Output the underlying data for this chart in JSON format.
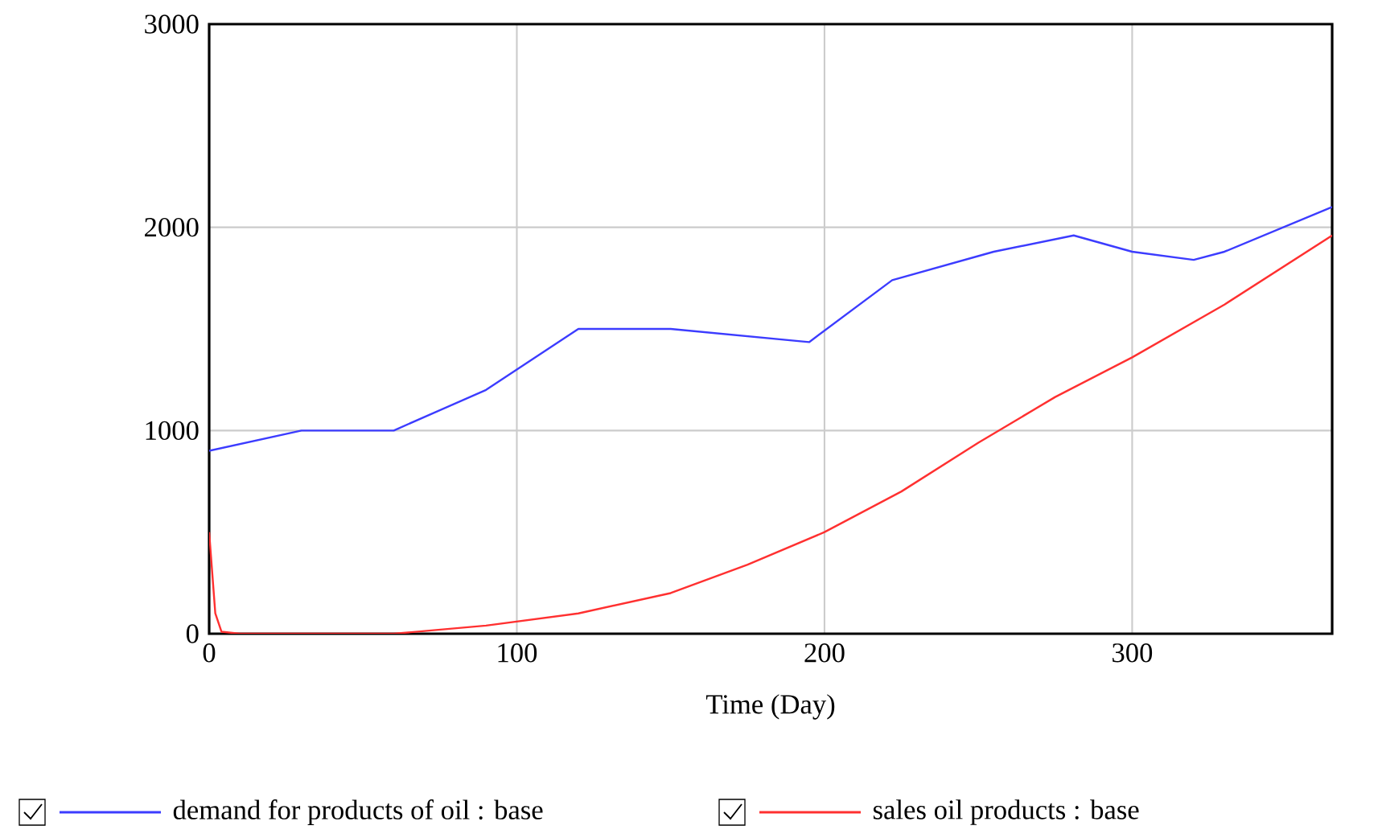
{
  "chart_data": {
    "type": "line",
    "xlabel": "Time (Day)",
    "xlim": [
      0,
      365
    ],
    "xticks": [
      0,
      100,
      200,
      300
    ],
    "ylim": [
      0,
      3000
    ],
    "yticks": [
      0,
      1000,
      2000,
      3000
    ],
    "grid": true,
    "legend": "bottom",
    "marker": "none",
    "line_style": "solid",
    "series": [
      {
        "name": "demand for products of oil : base",
        "color": "#3c3cff",
        "x": [
          0,
          30,
          60,
          90,
          120,
          150,
          195,
          222,
          255,
          281,
          300,
          320,
          330,
          365
        ],
        "values": [
          900,
          1000,
          1000,
          1200,
          1500,
          1500,
          1435,
          1740,
          1880,
          1960,
          1880,
          1840,
          1880,
          2100
        ]
      },
      {
        "name": "sales oil products : base",
        "color": "#ff3030",
        "x": [
          0,
          2,
          4,
          10,
          60,
          90,
          120,
          150,
          175,
          200,
          225,
          250,
          275,
          300,
          330,
          365
        ],
        "values": [
          500,
          100,
          10,
          0,
          0,
          40,
          100,
          200,
          340,
          500,
          700,
          940,
          1165,
          1360,
          1620,
          1960
        ]
      }
    ]
  }
}
